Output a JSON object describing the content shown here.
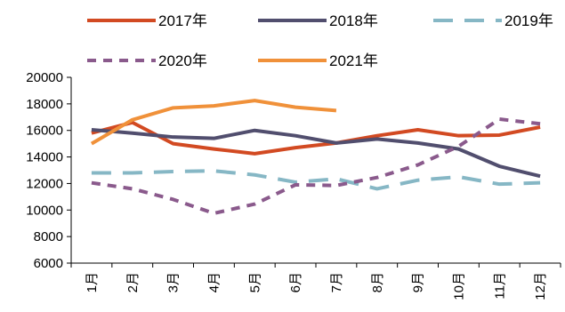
{
  "chart_data": {
    "type": "line",
    "title": "",
    "xlabel": "",
    "ylabel": "",
    "categories": [
      "1月",
      "2月",
      "3月",
      "4月",
      "5月",
      "6月",
      "7月",
      "8月",
      "9月",
      "10月",
      "11月",
      "12月"
    ],
    "ylim": [
      6000,
      20000
    ],
    "yticks": [
      6000,
      8000,
      10000,
      12000,
      14000,
      16000,
      18000,
      20000
    ],
    "grid": false,
    "legend_position": "top",
    "series": [
      {
        "name": "2017年",
        "color": "#d24a22",
        "style": "solid",
        "values": [
          15800,
          16600,
          15000,
          14600,
          14250,
          14700,
          15050,
          15600,
          16050,
          15600,
          15650,
          16250
        ]
      },
      {
        "name": "2018年",
        "color": "#514e6e",
        "style": "solid",
        "values": [
          16050,
          15800,
          15500,
          15400,
          16000,
          15600,
          15050,
          15350,
          15050,
          14600,
          13300,
          12550
        ]
      },
      {
        "name": "2019年",
        "color": "#86b7c5",
        "style": "dashed",
        "values": [
          12800,
          12800,
          12900,
          12950,
          12650,
          12100,
          12350,
          11600,
          12250,
          12500,
          11950,
          12050
        ]
      },
      {
        "name": "2020年",
        "color": "#8a5a8c",
        "style": "dotted",
        "values": [
          12050,
          11600,
          10800,
          9750,
          10450,
          11900,
          11850,
          12450,
          13400,
          14800,
          16850,
          16500
        ]
      },
      {
        "name": "2021年",
        "color": "#f0913a",
        "style": "solid",
        "values": [
          15000,
          16800,
          17700,
          17850,
          18250,
          17750,
          17500,
          null,
          null,
          null,
          null,
          null
        ]
      }
    ]
  }
}
